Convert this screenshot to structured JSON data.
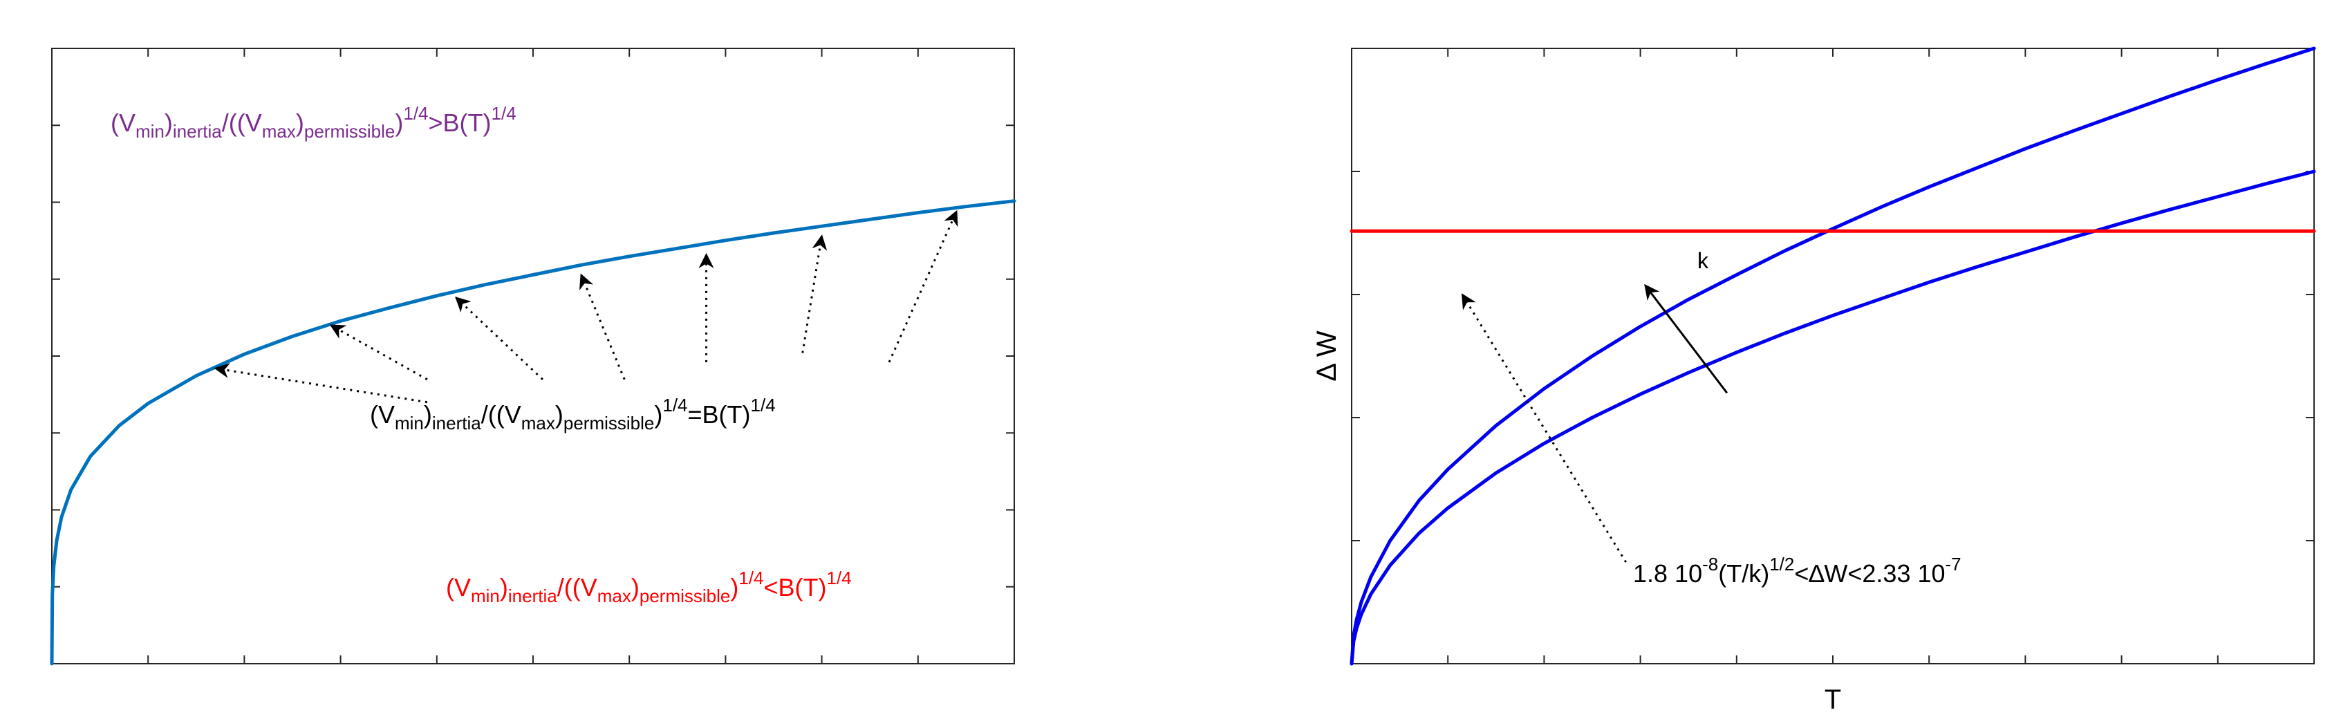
{
  "chart_data": [
    {
      "type": "line",
      "title": "",
      "xlabel": "",
      "ylabel": "",
      "xlim": [
        0,
        1
      ],
      "ylim": [
        0,
        1
      ],
      "grid": false,
      "axis_ticks": "unlabeled",
      "series": [
        {
          "color": "#0072bd",
          "x": [
            0,
            0.0005,
            0.002,
            0.005,
            0.01,
            0.02,
            0.04,
            0.07,
            0.1,
            0.15,
            0.2,
            0.25,
            0.3,
            0.35,
            0.4,
            0.45,
            0.5,
            0.55,
            0.6,
            0.65,
            0.7,
            0.75,
            0.8,
            0.85,
            0.9,
            0.95,
            1.0
          ],
          "y": [
            0,
            0.113,
            0.159,
            0.2,
            0.238,
            0.283,
            0.337,
            0.387,
            0.423,
            0.468,
            0.503,
            0.532,
            0.557,
            0.578,
            0.598,
            0.616,
            0.632,
            0.648,
            0.662,
            0.675,
            0.688,
            0.7,
            0.711,
            0.722,
            0.733,
            0.743,
            0.752
          ]
        }
      ],
      "annotations": [
        {
          "color": "#7b2d8e",
          "parts": [
            {
              "t": "(V"
            },
            {
              "t": "min",
              "pos": "sub"
            },
            {
              "t": ")"
            },
            {
              "t": "inertia",
              "pos": "sub"
            },
            {
              "t": "/((V"
            },
            {
              "t": "max",
              "pos": "sub"
            },
            {
              "t": ")"
            },
            {
              "t": "permissible",
              "pos": "sub"
            },
            {
              "t": ")"
            },
            {
              "t": "1/4",
              "pos": "sup"
            },
            {
              "t": ">B(T)"
            },
            {
              "t": "1/4",
              "pos": "sup"
            }
          ]
        },
        {
          "color": "#000000",
          "parts": [
            {
              "t": "(V"
            },
            {
              "t": "min",
              "pos": "sub"
            },
            {
              "t": ")"
            },
            {
              "t": "inertia",
              "pos": "sub"
            },
            {
              "t": "/((V"
            },
            {
              "t": "max",
              "pos": "sub"
            },
            {
              "t": ")"
            },
            {
              "t": "permissible",
              "pos": "sub"
            },
            {
              "t": ")"
            },
            {
              "t": "1/4",
              "pos": "sup"
            },
            {
              "t": "=B(T)"
            },
            {
              "t": "1/4",
              "pos": "sup"
            }
          ]
        },
        {
          "color": "#ff0000",
          "parts": [
            {
              "t": "(V"
            },
            {
              "t": "min",
              "pos": "sub"
            },
            {
              "t": ")"
            },
            {
              "t": "inertia",
              "pos": "sub"
            },
            {
              "t": "/((V"
            },
            {
              "t": "max",
              "pos": "sub"
            },
            {
              "t": ")"
            },
            {
              "t": "permissible",
              "pos": "sub"
            },
            {
              "t": ")"
            },
            {
              "t": "1/4",
              "pos": "sup"
            },
            {
              "t": "<B(T)"
            },
            {
              "t": "1/4",
              "pos": "sup"
            }
          ]
        }
      ],
      "arrows": [
        {
          "style": "dotted",
          "from": [
            0.39,
            0.425
          ],
          "to": [
            0.17,
            0.48
          ]
        },
        {
          "style": "dotted",
          "from": [
            0.39,
            0.462
          ],
          "to": [
            0.29,
            0.55
          ]
        },
        {
          "style": "dotted",
          "from": [
            0.51,
            0.462
          ],
          "to": [
            0.42,
            0.595
          ]
        },
        {
          "style": "dotted",
          "from": [
            0.595,
            0.462
          ],
          "to": [
            0.55,
            0.632
          ]
        },
        {
          "style": "dotted",
          "from": [
            0.68,
            0.49
          ],
          "to": [
            0.68,
            0.665
          ]
        },
        {
          "style": "dotted",
          "from": [
            0.78,
            0.505
          ],
          "to": [
            0.8,
            0.695
          ]
        },
        {
          "style": "dotted",
          "from": [
            0.87,
            0.49
          ],
          "to": [
            0.94,
            0.735
          ]
        }
      ]
    },
    {
      "type": "line",
      "title": "",
      "xlabel": "T",
      "ylabel": "Δ W",
      "xlim": [
        0,
        1
      ],
      "ylim": [
        0,
        1
      ],
      "grid": false,
      "axis_ticks": "unlabeled",
      "series": [
        {
          "color": "#0000ee",
          "x": [
            0,
            0.002,
            0.005,
            0.01,
            0.02,
            0.04,
            0.07,
            0.1,
            0.15,
            0.2,
            0.25,
            0.3,
            0.35,
            0.4,
            0.45,
            0.5,
            0.55,
            0.6,
            0.65,
            0.7,
            0.75,
            0.8,
            0.85,
            0.9,
            0.95,
            1.0
          ],
          "y": [
            0,
            0.045,
            0.071,
            0.1,
            0.141,
            0.2,
            0.265,
            0.316,
            0.387,
            0.447,
            0.5,
            0.548,
            0.592,
            0.632,
            0.671,
            0.707,
            0.742,
            0.775,
            0.806,
            0.837,
            0.866,
            0.894,
            0.922,
            0.949,
            0.975,
            1.0
          ]
        },
        {
          "color": "#0000ee",
          "x": [
            0,
            0.002,
            0.005,
            0.01,
            0.02,
            0.04,
            0.07,
            0.1,
            0.15,
            0.2,
            0.25,
            0.3,
            0.35,
            0.4,
            0.45,
            0.5,
            0.55,
            0.6,
            0.65,
            0.7,
            0.75,
            0.8,
            0.85,
            0.9,
            0.95,
            1.0
          ],
          "y": [
            0,
            0.036,
            0.057,
            0.08,
            0.113,
            0.16,
            0.212,
            0.253,
            0.31,
            0.358,
            0.4,
            0.438,
            0.473,
            0.506,
            0.537,
            0.566,
            0.593,
            0.62,
            0.645,
            0.669,
            0.693,
            0.716,
            0.738,
            0.759,
            0.78,
            0.8
          ]
        },
        {
          "color": "#ff0000",
          "x": [
            0,
            1
          ],
          "y": [
            0.703,
            0.703
          ]
        }
      ],
      "labels": [
        {
          "text": "k",
          "color": "#000000",
          "at": [
            0.365,
            0.655
          ]
        }
      ],
      "annotations": [
        {
          "color": "#000000",
          "parts": [
            {
              "t": "1.8 10"
            },
            {
              "t": "-8",
              "pos": "sup"
            },
            {
              "t": "(T/k)"
            },
            {
              "t": "1/2",
              "pos": "sup"
            },
            {
              "t": "<∆W<2.33 10"
            },
            {
              "t": "-7",
              "pos": "sup"
            }
          ]
        }
      ],
      "arrows": [
        {
          "style": "dotted",
          "from": [
            0.285,
            0.165
          ],
          "to": [
            0.115,
            0.6
          ]
        },
        {
          "style": "solid",
          "from": [
            0.39,
            0.44
          ],
          "to": [
            0.305,
            0.615
          ]
        }
      ]
    }
  ]
}
